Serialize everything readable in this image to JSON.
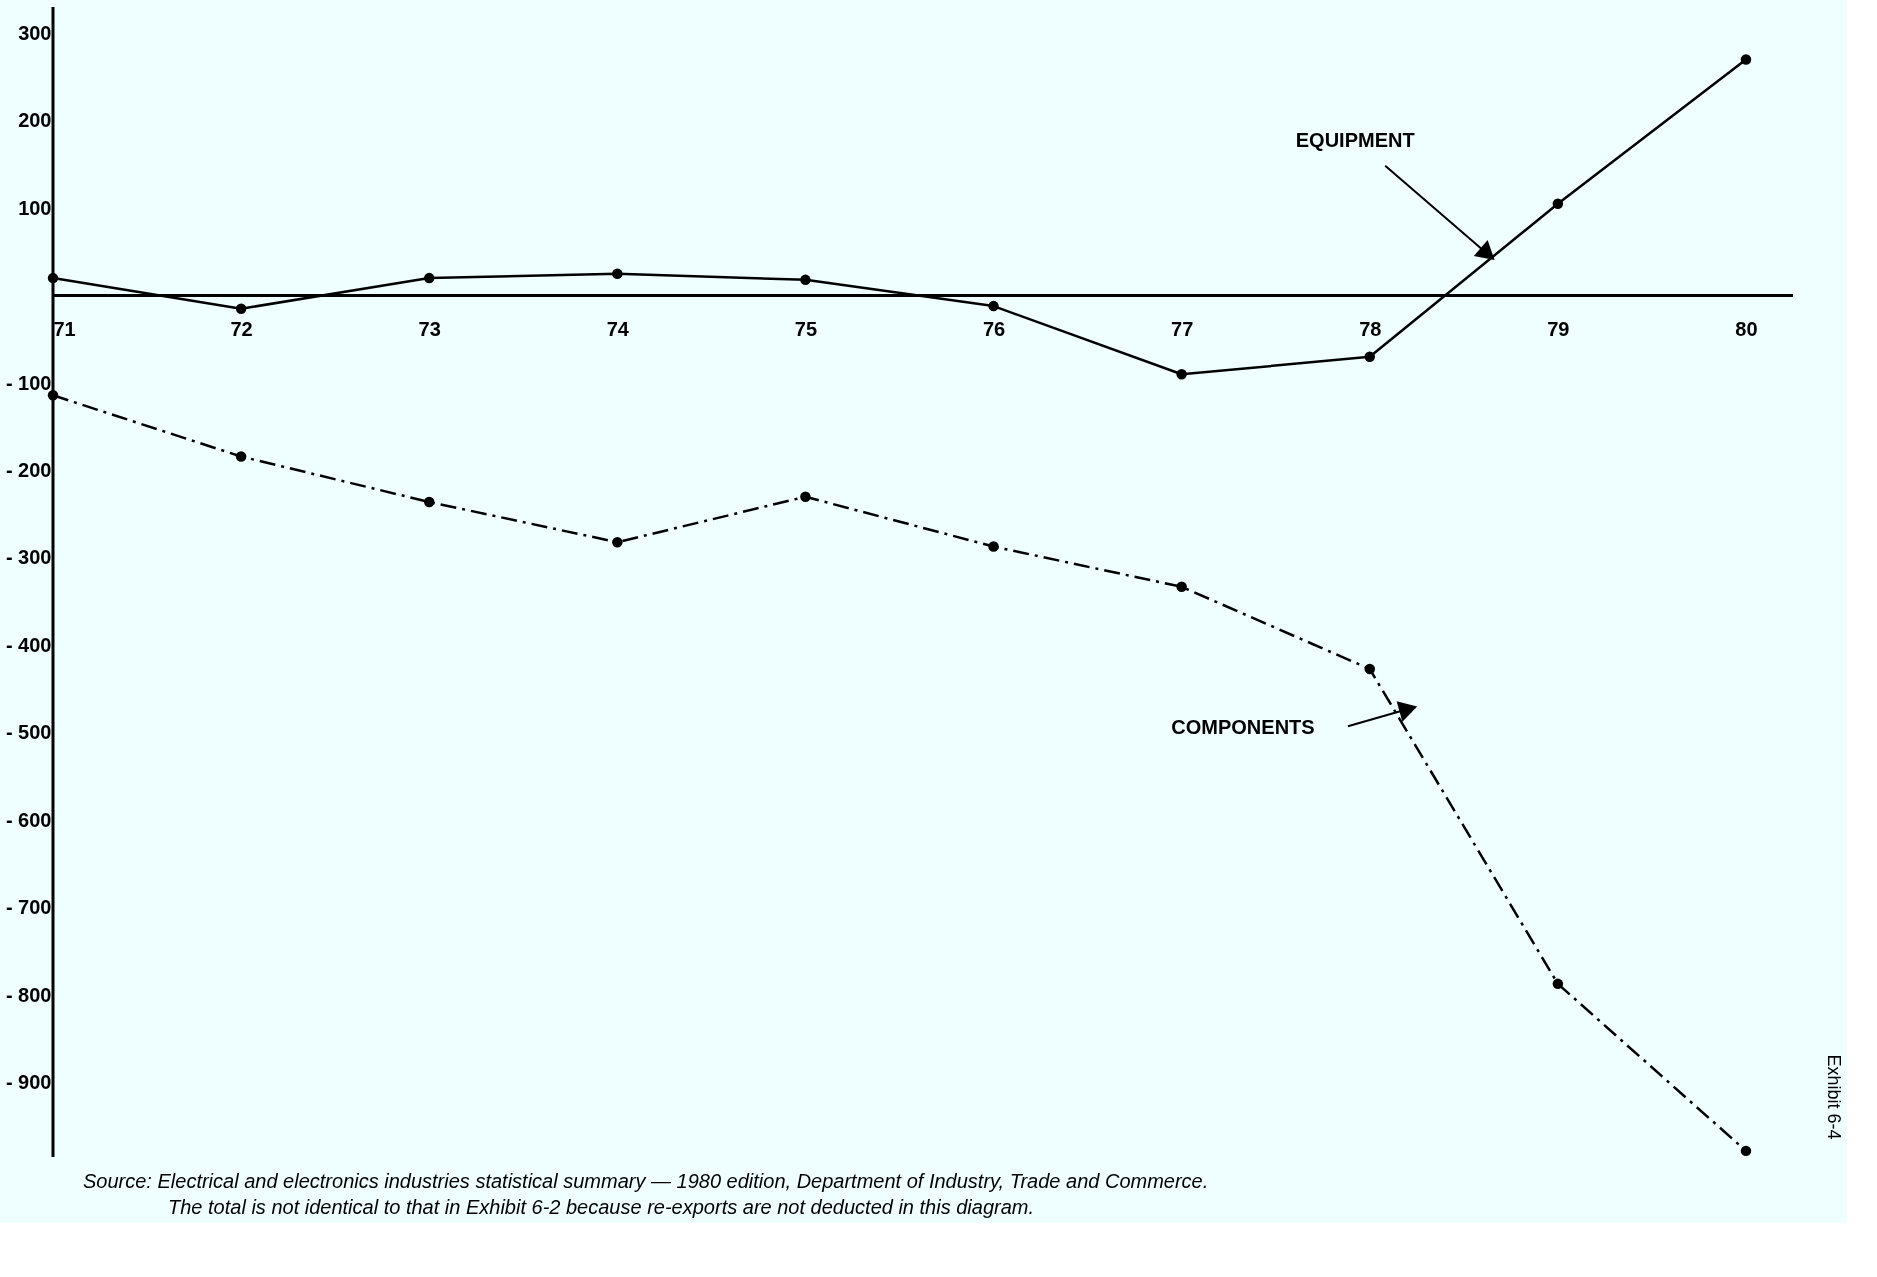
{
  "chart_data": {
    "type": "line",
    "x": [
      71,
      72,
      73,
      74,
      75,
      76,
      77,
      78,
      79,
      80
    ],
    "xlim": [
      71,
      80.25
    ],
    "xticks": [
      71,
      72,
      73,
      74,
      75,
      76,
      77,
      78,
      79,
      80
    ],
    "ylim": [
      -985,
      330
    ],
    "yticks": [
      300,
      200,
      100,
      {
        "value": -100,
        "label": "- 100"
      },
      {
        "value": -200,
        "label": "- 200"
      },
      {
        "value": -300,
        "label": "- 300"
      },
      {
        "value": -400,
        "label": "- 400"
      },
      {
        "value": -500,
        "label": "- 500"
      },
      {
        "value": -600,
        "label": "- 600"
      },
      {
        "value": -700,
        "label": "- 700"
      },
      {
        "value": -800,
        "label": "- 800"
      },
      {
        "value": -900,
        "label": "- 900"
      }
    ],
    "series": [
      {
        "color": "#000000",
        "line_style": "solid",
        "values": [
          20,
          -15,
          20,
          25,
          18,
          -12,
          -90,
          -70,
          105,
          270
        ]
      },
      {
        "color": "#000000",
        "line_style": "dashed",
        "values": [
          -114,
          -184,
          -236,
          -282,
          -230,
          -287,
          -333,
          -427,
          -787,
          -978
        ]
      }
    ],
    "marker": "circle",
    "grid": false,
    "legend": false,
    "annotations": [
      "EQUIPMENT",
      "COMPONENTS",
      "Source:  Electrical and electronics industries statistical summary — 1980 edition, Department of Industry, Trade and Commerce.",
      "The total is not identical to that in Exhibit 6-2 because re-exports are not deducted in this diagram.",
      "Exhibit 6-4"
    ]
  }
}
